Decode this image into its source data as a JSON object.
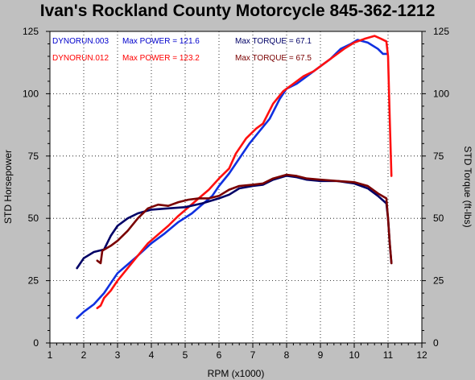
{
  "chart_data": {
    "type": "line",
    "title": "Ivan's Rockland County Motorcycle  845-362-1212",
    "xlabel": "RPM (x1000)",
    "ylabel_left": "STD Horsepower",
    "ylabel_right": "STD Torque (ft-lbs)",
    "xlim": [
      1,
      12
    ],
    "ylim": [
      0,
      125
    ],
    "x_ticks": [
      "1",
      "2",
      "3",
      "4",
      "5",
      "6",
      "7",
      "8",
      "9",
      "10",
      "11",
      "12"
    ],
    "y_ticks_left": [
      "0",
      "25",
      "50",
      "75",
      "100",
      "125"
    ],
    "y_ticks_right": [
      "0",
      "25",
      "50",
      "75",
      "100",
      "125"
    ],
    "grid": true,
    "legend": [
      {
        "run": "DYNORUN.003",
        "power_label": "Max POWER = 121.6",
        "torque_label": "Max TORQUE = 67.1",
        "color": "#0000cc",
        "torque_color": "#000066"
      },
      {
        "run": "DYNORUN.012",
        "power_label": "Max POWER = 123.2",
        "torque_label": "Max TORQUE = 67.5",
        "color": "#ff0000",
        "torque_color": "#7a0000"
      }
    ],
    "series": [
      {
        "name": "DYNORUN.003",
        "measure": "power",
        "color": "#1030e0",
        "points": [
          [
            1.8,
            10
          ],
          [
            2.0,
            12.5
          ],
          [
            2.3,
            15.5
          ],
          [
            2.6,
            20
          ],
          [
            2.8,
            24
          ],
          [
            3.0,
            28
          ],
          [
            3.3,
            31.5
          ],
          [
            3.6,
            35
          ],
          [
            4.0,
            40
          ],
          [
            4.4,
            44
          ],
          [
            4.8,
            48.5
          ],
          [
            5.2,
            52
          ],
          [
            5.5,
            55.5
          ],
          [
            5.8,
            59
          ],
          [
            6.0,
            63
          ],
          [
            6.3,
            68
          ],
          [
            6.6,
            74
          ],
          [
            6.9,
            80
          ],
          [
            7.2,
            85
          ],
          [
            7.5,
            90
          ],
          [
            7.8,
            98
          ],
          [
            8.0,
            102
          ],
          [
            8.3,
            104
          ],
          [
            8.6,
            107
          ],
          [
            9.0,
            111
          ],
          [
            9.3,
            114
          ],
          [
            9.6,
            118
          ],
          [
            9.9,
            120
          ],
          [
            10.1,
            121.6
          ],
          [
            10.4,
            120.5
          ],
          [
            10.7,
            118
          ],
          [
            10.85,
            116
          ],
          [
            10.95,
            116
          ]
        ]
      },
      {
        "name": "DYNORUN.012",
        "measure": "power",
        "color": "#ff1010",
        "points": [
          [
            2.4,
            14
          ],
          [
            2.5,
            15
          ],
          [
            2.6,
            18
          ],
          [
            2.8,
            21
          ],
          [
            3.0,
            25
          ],
          [
            3.3,
            30
          ],
          [
            3.6,
            35
          ],
          [
            3.9,
            40
          ],
          [
            4.2,
            43.5
          ],
          [
            4.5,
            47
          ],
          [
            4.8,
            51
          ],
          [
            5.1,
            54.5
          ],
          [
            5.4,
            58
          ],
          [
            5.7,
            61.5
          ],
          [
            6.0,
            66
          ],
          [
            6.3,
            70
          ],
          [
            6.5,
            76
          ],
          [
            6.8,
            82
          ],
          [
            7.1,
            86
          ],
          [
            7.3,
            88
          ],
          [
            7.6,
            96
          ],
          [
            7.9,
            101
          ],
          [
            8.2,
            104
          ],
          [
            8.5,
            107
          ],
          [
            8.8,
            109
          ],
          [
            9.1,
            112
          ],
          [
            9.4,
            115
          ],
          [
            9.7,
            118
          ],
          [
            10.0,
            120.5
          ],
          [
            10.3,
            122
          ],
          [
            10.6,
            123.2
          ],
          [
            10.8,
            122
          ],
          [
            10.95,
            121
          ],
          [
            11.0,
            115
          ],
          [
            11.05,
            90
          ],
          [
            11.1,
            67
          ]
        ]
      },
      {
        "name": "DYNORUN.003",
        "measure": "torque",
        "color": "#000066",
        "points": [
          [
            1.8,
            30
          ],
          [
            2.0,
            34
          ],
          [
            2.3,
            36.5
          ],
          [
            2.6,
            37.5
          ],
          [
            2.8,
            43
          ],
          [
            3.0,
            47
          ],
          [
            3.3,
            50
          ],
          [
            3.6,
            52
          ],
          [
            4.0,
            53.5
          ],
          [
            4.5,
            54
          ],
          [
            5.0,
            54.5
          ],
          [
            5.5,
            56
          ],
          [
            6.0,
            58
          ],
          [
            6.3,
            59.5
          ],
          [
            6.6,
            62
          ],
          [
            7.0,
            63
          ],
          [
            7.3,
            63.5
          ],
          [
            7.6,
            65.5
          ],
          [
            8.0,
            67.1
          ],
          [
            8.3,
            66.5
          ],
          [
            8.6,
            65.5
          ],
          [
            9.0,
            65
          ],
          [
            9.5,
            65
          ],
          [
            10.0,
            64
          ],
          [
            10.4,
            62
          ],
          [
            10.7,
            59
          ],
          [
            10.95,
            56
          ],
          [
            11.0,
            50
          ],
          [
            11.05,
            40
          ],
          [
            11.1,
            32
          ]
        ]
      },
      {
        "name": "DYNORUN.012",
        "measure": "torque",
        "color": "#7a0000",
        "points": [
          [
            2.4,
            33
          ],
          [
            2.5,
            32
          ],
          [
            2.55,
            37
          ],
          [
            2.8,
            39
          ],
          [
            3.0,
            41
          ],
          [
            3.3,
            45
          ],
          [
            3.6,
            50
          ],
          [
            3.9,
            54
          ],
          [
            4.2,
            55.5
          ],
          [
            4.5,
            55
          ],
          [
            4.8,
            56.5
          ],
          [
            5.1,
            57.5
          ],
          [
            5.4,
            58
          ],
          [
            5.7,
            58
          ],
          [
            6.0,
            59
          ],
          [
            6.3,
            61.5
          ],
          [
            6.6,
            63
          ],
          [
            7.0,
            63.5
          ],
          [
            7.3,
            64
          ],
          [
            7.6,
            66
          ],
          [
            8.0,
            67.5
          ],
          [
            8.3,
            67
          ],
          [
            8.6,
            66
          ],
          [
            9.0,
            65.5
          ],
          [
            9.5,
            65
          ],
          [
            10.0,
            64.5
          ],
          [
            10.4,
            63
          ],
          [
            10.7,
            60
          ],
          [
            10.95,
            58
          ],
          [
            11.0,
            50
          ],
          [
            11.05,
            40
          ],
          [
            11.1,
            32
          ]
        ]
      }
    ]
  }
}
